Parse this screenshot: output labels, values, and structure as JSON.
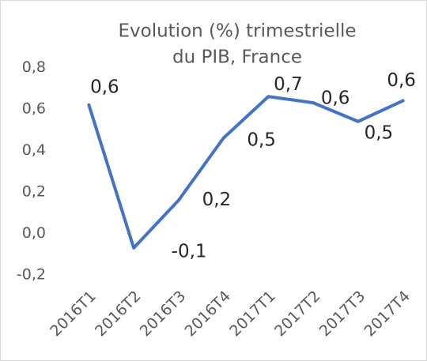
{
  "chart_data": {
    "type": "line",
    "title": [
      "Evolution (%) trimestrielle",
      "du PIB, France"
    ],
    "categories": [
      "2016T1",
      "2016T2",
      "2016T3",
      "2016T4",
      "2017T1",
      "2017T2",
      "2017T3",
      "2017T4"
    ],
    "series": [
      {
        "name": "PIB",
        "color": "#4472c4",
        "values": [
          0.62,
          -0.07,
          0.16,
          0.46,
          0.66,
          0.63,
          0.54,
          0.64
        ],
        "value_labels": [
          "0,6",
          "-0,1",
          "0,2",
          "0,5",
          "0,7",
          "0,6",
          "0,5",
          "0,6"
        ]
      }
    ],
    "ylim": [
      -0.2,
      1.0
    ],
    "yticks": [
      {
        "value": -0.2,
        "label": "-0,2"
      },
      {
        "value": 0.0,
        "label": "0,0"
      },
      {
        "value": 0.2,
        "label": "0,2"
      },
      {
        "value": 0.4,
        "label": "0,4"
      },
      {
        "value": 0.6,
        "label": "0,6"
      },
      {
        "value": 0.8,
        "label": "0,8"
      }
    ],
    "grid": false
  }
}
